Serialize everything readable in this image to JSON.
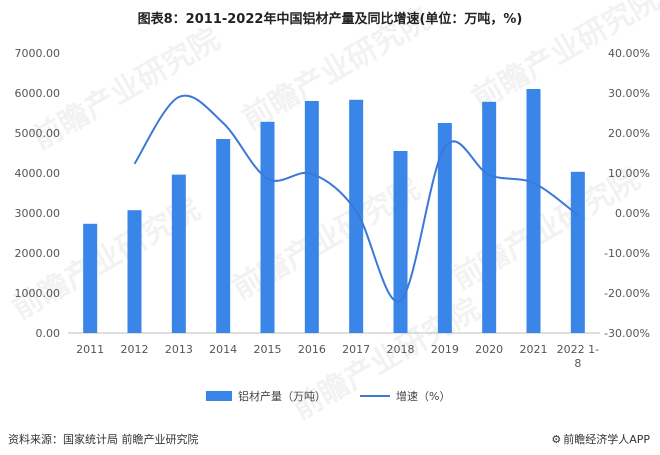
{
  "title": "图表8：2011-2022年中国铝材产量及同比增速(单位：万吨，%)",
  "watermark": "前瞻产业研究院",
  "footer": {
    "source": "资料来源：国家统计局 前瞻产业研究院",
    "brand": "前瞻经济学人APP",
    "brand_icon": "gear-icon"
  },
  "colors": {
    "bar": "#3a86e8",
    "line": "#3b78d8",
    "axis": "#bfbfbf"
  },
  "chart_data": {
    "type": "bar",
    "categories": [
      "2011",
      "2012",
      "2013",
      "2014",
      "2015",
      "2016",
      "2017",
      "2018",
      "2019",
      "2020",
      "2021",
      "2022 1-8"
    ],
    "y_ticks": [
      "0.00",
      "1000.00",
      "2000.00",
      "3000.00",
      "4000.00",
      "5000.00",
      "6000.00",
      "7000.00"
    ],
    "y2_ticks": [
      "-30.00%",
      "-20.00%",
      "-10.00%",
      "0.00%",
      "10.00%",
      "20.00%",
      "30.00%",
      "40.00%"
    ],
    "ylim": [
      0,
      7000
    ],
    "y2lim": [
      -30,
      40
    ],
    "series": [
      {
        "name": "铝材产量（万吨）",
        "type": "bar",
        "axis": "left",
        "values": [
          2730,
          3070,
          3960,
          4850,
          5280,
          5800,
          5830,
          4550,
          5250,
          5780,
          6100,
          4030
        ]
      },
      {
        "name": "增速（%）",
        "type": "line",
        "axis": "right",
        "values": [
          null,
          12.3,
          29.0,
          22.5,
          8.6,
          9.8,
          0.5,
          -21.9,
          16.5,
          9.5,
          7.5,
          -0.5
        ]
      }
    ]
  }
}
